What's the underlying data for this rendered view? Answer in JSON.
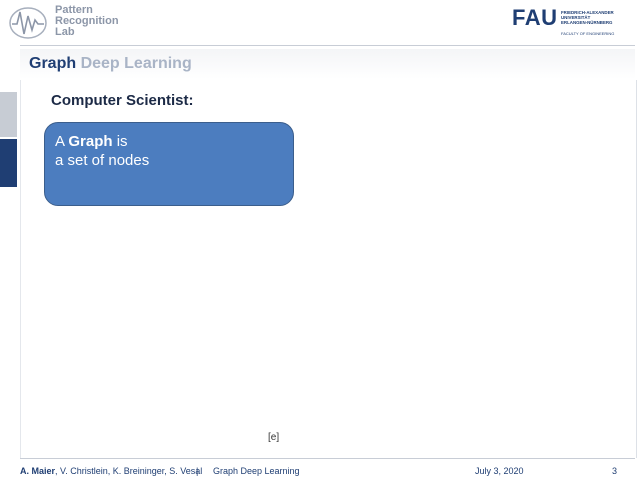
{
  "header": {
    "lab_logo_lines": [
      "Pattern",
      "Recognition",
      "Lab"
    ],
    "fau_logo": "FAU",
    "fau_sub": [
      "FRIEDRICH-ALEXANDER",
      "UNIVERSITÄT",
      "ERLANGEN-NÜRNBERG"
    ],
    "fau_faculty": "FACULTY OF ENGINEERING"
  },
  "slide": {
    "title_part1": "Graph",
    "title_part2": "Deep Learning",
    "subtitle": "Computer Scientist:",
    "box_prefix": "A ",
    "box_bold": "Graph",
    "box_suffix": " is",
    "box_line2": "a set of nodes",
    "citation": "[e]"
  },
  "footer": {
    "author_bold": "A. Maier",
    "authors_rest": ", V. Christlein, K. Breininger, S. Vesal",
    "separator": "|",
    "course": "Graph Deep Learning",
    "date": "July 3, 2020",
    "page": "3"
  },
  "colors": {
    "primary": "#1f3e73",
    "box_fill": "#4c7dbf",
    "title_light": "#a9b4c6"
  }
}
